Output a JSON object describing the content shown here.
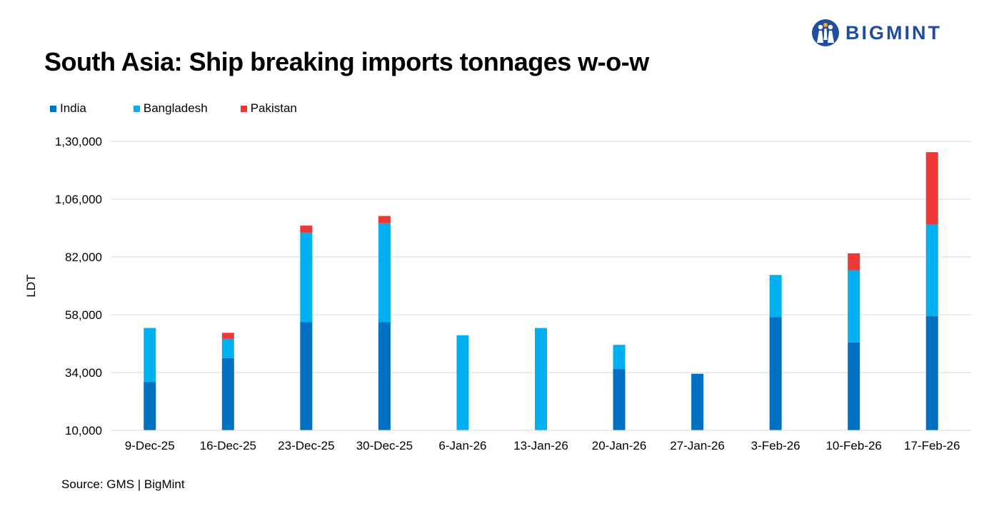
{
  "title": "South Asia: Ship breaking imports tonnages w-o-w",
  "brand": {
    "name": "BIGMINT",
    "color": "#1F4E9E",
    "icon": "people-circle-logo-icon"
  },
  "source": "Source: GMS | BigMint",
  "chart_data": {
    "type": "bar",
    "stacked": true,
    "categories": [
      "9-Dec-25",
      "16-Dec-25",
      "23-Dec-25",
      "30-Dec-25",
      "6-Jan-26",
      "13-Jan-26",
      "20-Jan-26",
      "27-Jan-26",
      "3-Feb-26",
      "10-Feb-26",
      "17-Feb-26"
    ],
    "series": [
      {
        "name": "India",
        "color": "#0070C0",
        "values": [
          20000,
          30000,
          45000,
          45000,
          0,
          0,
          25500,
          23500,
          47000,
          36500,
          47500
        ]
      },
      {
        "name": "Bangladesh",
        "color": "#00B0F0",
        "values": [
          22500,
          8000,
          37000,
          41000,
          39500,
          42500,
          10000,
          0,
          17500,
          30000,
          38000
        ]
      },
      {
        "name": "Pakistan",
        "color": "#EE3835",
        "values": [
          0,
          2500,
          3000,
          3000,
          0,
          0,
          0,
          0,
          0,
          7000,
          30000
        ]
      }
    ],
    "ylabel": "LDT",
    "xlabel": "",
    "ylim": [
      10000,
      130000
    ],
    "yticks": [
      10000,
      34000,
      58000,
      82000,
      106000,
      130000
    ],
    "ytick_labels": [
      "10,000",
      "34,000",
      "58,000",
      "82,000",
      "1,06,000",
      "1,30,000"
    ],
    "grid": true,
    "legend_position": "top-left"
  }
}
